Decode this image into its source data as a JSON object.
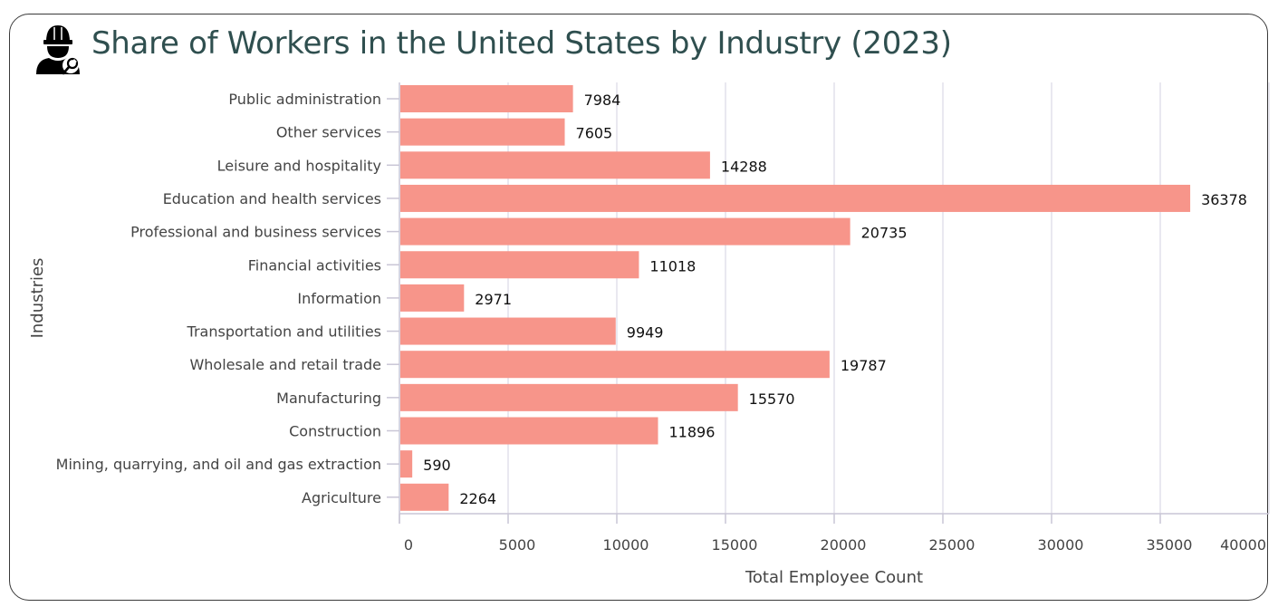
{
  "header": {
    "title": "Share of Workers in the United States by Industry (2023)",
    "icon": "worker-wrench-icon"
  },
  "colors": {
    "bar": "#f7958a",
    "title": "#2f4f4f",
    "grid": "#e2e0ec",
    "axis": "#c9c6d6"
  },
  "chart_data": {
    "type": "bar",
    "orientation": "horizontal",
    "title": "Share of Workers in the United States by Industry (2023)",
    "xlabel": "Total Employee Count",
    "ylabel": "Industries",
    "xlim": [
      0,
      40000
    ],
    "xticks": [
      0,
      5000,
      10000,
      15000,
      20000,
      25000,
      30000,
      35000,
      40000
    ],
    "grid": true,
    "legend": "none",
    "categories": [
      "Public administration",
      "Other services",
      "Leisure and hospitality",
      "Education and health services",
      "Professional and business services",
      "Financial activities",
      "Information",
      "Transportation and utilities",
      "Wholesale and retail trade",
      "Manufacturing",
      "Construction",
      "Mining, quarrying, and oil and gas extraction",
      "Agriculture"
    ],
    "values": [
      7984,
      7605,
      14288,
      36378,
      20735,
      11018,
      2971,
      9949,
      19787,
      15570,
      11896,
      590,
      2264
    ]
  }
}
